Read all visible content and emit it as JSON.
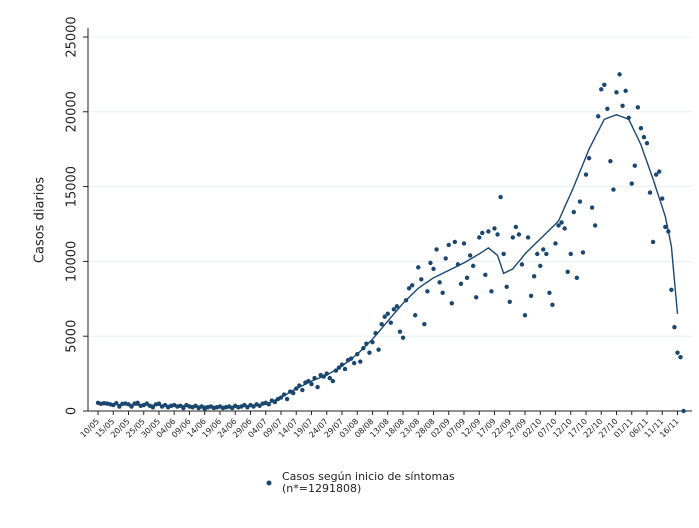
{
  "chart_data": {
    "type": "scatter",
    "y_label": "Casos diarios",
    "categories": [
      "10/05",
      null,
      null,
      null,
      null,
      "15/05",
      null,
      null,
      null,
      null,
      "20/05",
      null,
      null,
      null,
      null,
      "25/05",
      null,
      null,
      null,
      null,
      "30/05",
      null,
      null,
      null,
      null,
      "04/06",
      null,
      null,
      null,
      null,
      "09/06",
      null,
      null,
      null,
      null,
      "14/06",
      null,
      null,
      null,
      null,
      "19/06",
      null,
      null,
      null,
      null,
      "24/06",
      null,
      null,
      null,
      null,
      "29/06",
      null,
      null,
      null,
      null,
      "04/07",
      null,
      null,
      null,
      null,
      "09/07",
      null,
      null,
      null,
      null,
      "14/07",
      null,
      null,
      null,
      null,
      "19/07",
      null,
      null,
      null,
      null,
      "24/07",
      null,
      null,
      null,
      null,
      "29/07",
      null,
      null,
      null,
      null,
      "03/08",
      null,
      null,
      null,
      null,
      "08/08",
      null,
      null,
      null,
      null,
      "13/08",
      null,
      null,
      null,
      null,
      "18/08",
      null,
      null,
      null,
      null,
      "23/08",
      null,
      null,
      null,
      null,
      "28/08",
      null,
      null,
      null,
      null,
      "02/09",
      null,
      null,
      null,
      null,
      "07/09",
      null,
      null,
      null,
      null,
      "12/09",
      null,
      null,
      null,
      null,
      "17/09",
      null,
      null,
      null,
      null,
      "22/09",
      null,
      null,
      null,
      null,
      "27/09",
      null,
      null,
      null,
      null,
      "02/10",
      null,
      null,
      null,
      null,
      "07/10",
      null,
      null,
      null,
      null,
      "12/10",
      null,
      null,
      null,
      null,
      "17/10",
      null,
      null,
      null,
      null,
      "22/10",
      null,
      null,
      null,
      null,
      "27/10",
      null,
      null,
      null,
      null,
      "01/11",
      null,
      null,
      null,
      null,
      "06/11",
      null,
      null,
      null,
      null,
      "11/11",
      null,
      null,
      null,
      null,
      "16/11",
      null,
      null
    ],
    "series": [
      {
        "name": "Casos según inicio de síntomas",
        "color": "#1a476f",
        "values": [
          550,
          480,
          520,
          500,
          450,
          400,
          520,
          300,
          480,
          500,
          450,
          300,
          500,
          550,
          350,
          400,
          500,
          350,
          250,
          450,
          500,
          300,
          400,
          250,
          350,
          400,
          300,
          350,
          200,
          400,
          300,
          250,
          350,
          200,
          300,
          150,
          250,
          300,
          200,
          250,
          300,
          200,
          250,
          300,
          200,
          350,
          250,
          300,
          400,
          250,
          400,
          300,
          450,
          350,
          500,
          550,
          450,
          700,
          600,
          800,
          900,
          1100,
          800,
          1300,
          1200,
          1500,
          1700,
          1400,
          1900,
          2000,
          1800,
          2200,
          1600,
          2400,
          2300,
          2500,
          2200,
          2000,
          2700,
          2900,
          3100,
          2800,
          3400,
          3500,
          3200,
          3800,
          3300,
          4200,
          4500,
          3900,
          4600,
          5200,
          4100,
          5800,
          6300,
          6500,
          5900,
          6800,
          7000,
          5300,
          4900,
          7400,
          8200,
          8400,
          6400,
          9600,
          8800,
          5800,
          8000,
          9900,
          9500,
          10800,
          8600,
          7900,
          10200,
          11100,
          7200,
          11300,
          9800,
          8500,
          11200,
          8900,
          10400,
          9700,
          7600,
          11600,
          11900,
          9100,
          12000,
          8000,
          12200,
          11800,
          14300,
          10500,
          8300,
          7300,
          11600,
          12300,
          11800,
          9800,
          6400,
          11600,
          7700,
          9000,
          10500,
          9700,
          10800,
          10500,
          7900,
          7100,
          11200,
          12400,
          12600,
          12200,
          9300,
          10500,
          13300,
          8900,
          14000,
          10600,
          15800,
          16900,
          13600,
          12400,
          19700,
          21500,
          21800,
          20200,
          16700,
          14800,
          21300,
          22500,
          20400,
          21400,
          19600,
          15200,
          16400,
          20300,
          18900,
          18300,
          17900,
          14600,
          11300,
          15800,
          16000,
          14200,
          12300,
          12000,
          8100,
          5600,
          3900,
          3600,
          0
        ]
      },
      {
        "type": "line",
        "color": "#1a476f",
        "values": [
          450,
          446,
          443,
          439,
          436,
          432,
          429,
          425,
          422,
          418,
          415,
          411,
          408,
          404,
          401,
          397,
          394,
          390,
          387,
          383,
          380,
          376,
          372,
          368,
          364,
          360,
          356,
          352,
          348,
          344,
          340,
          336,
          332,
          328,
          324,
          320,
          316,
          312,
          308,
          304,
          300,
          302,
          304,
          306,
          308,
          310,
          312,
          314,
          316,
          318,
          320,
          346,
          372,
          398,
          424,
          450,
          540,
          630,
          720,
          810,
          900,
          1020,
          1140,
          1260,
          1380,
          1500,
          1600,
          1700,
          1800,
          1900,
          2000,
          2080,
          2160,
          2240,
          2320,
          2400,
          2520,
          2640,
          2760,
          2880,
          3000,
          3160,
          3320,
          3480,
          3640,
          3800,
          4000,
          4200,
          4400,
          4600,
          4800,
          5040,
          5280,
          5520,
          5760,
          6000,
          6240,
          6480,
          6720,
          6960,
          7200,
          7400,
          7600,
          7800,
          8000,
          8200,
          8340,
          8480,
          8620,
          8760,
          8900,
          9000,
          9100,
          9200,
          9300,
          9400,
          9500,
          9600,
          9700,
          9800,
          9900,
          10020,
          10140,
          10260,
          10380,
          10500,
          10633,
          10767,
          10900,
          10733,
          10567,
          10400,
          9800,
          9200,
          9300,
          9400,
          9500,
          9750,
          10000,
          10250,
          10500,
          10700,
          10900,
          11100,
          11300,
          11500,
          11700,
          11900,
          12100,
          12300,
          12500,
          12700,
          13160,
          13620,
          14080,
          14540,
          15000,
          15500,
          16000,
          16500,
          17000,
          17500,
          17900,
          18300,
          18700,
          19100,
          19500,
          19575,
          19650,
          19725,
          19800,
          19725,
          19650,
          19575,
          19500,
          19075,
          18650,
          18225,
          17800,
          17225,
          16650,
          16075,
          15500,
          14875,
          14250,
          13625,
          13000,
          12000,
          11000,
          8750,
          6500,
          null,
          null
        ]
      }
    ],
    "legend_note": "(n*=1291808)",
    "ylim": [
      0,
      25600
    ],
    "yticks": [
      0,
      5000,
      10000,
      15000,
      20000,
      25000
    ],
    "grid": true
  }
}
